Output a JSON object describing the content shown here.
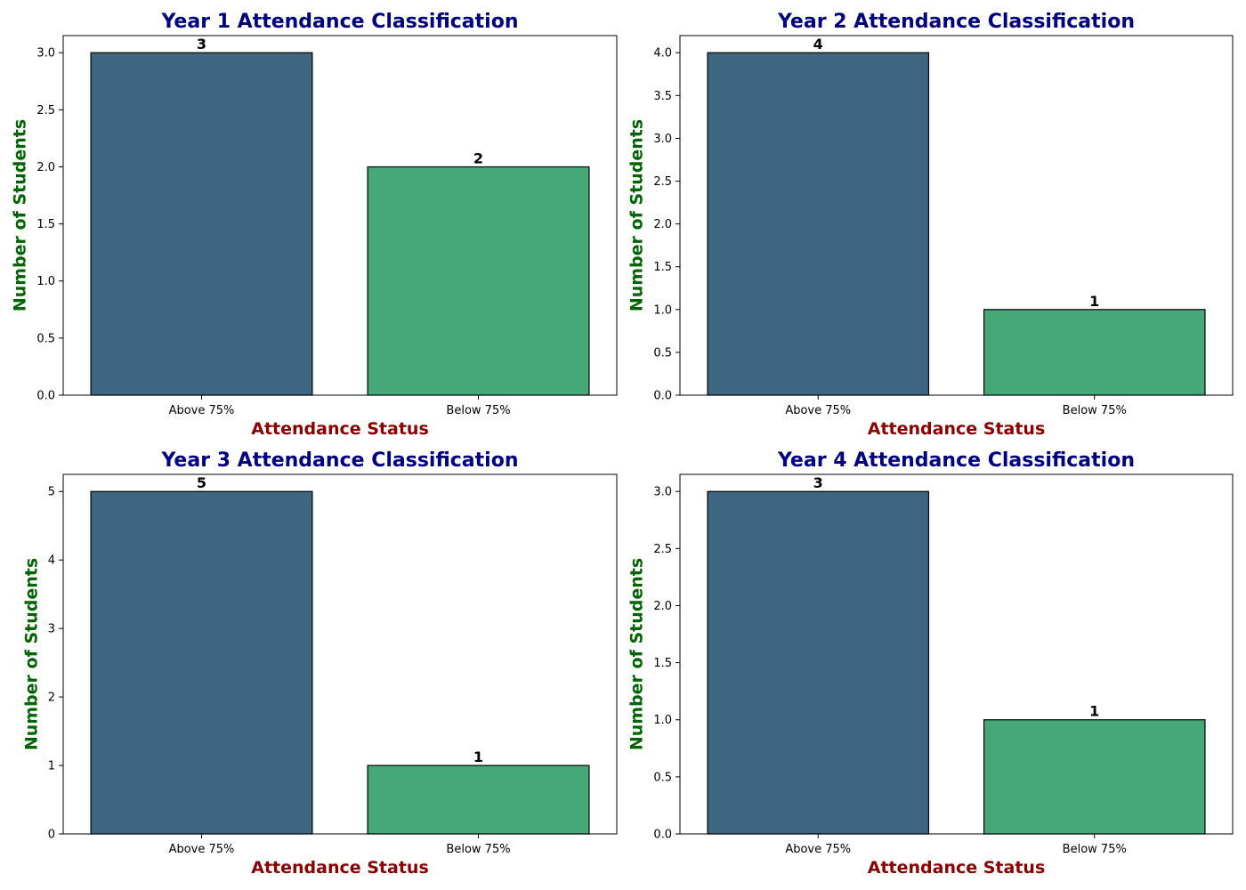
{
  "colors": {
    "bar_above": "#3e6681",
    "bar_below": "#46a876",
    "bar_edge": "#000000",
    "title": "#000080",
    "xlabel": "#8b0000",
    "ylabel": "#006400"
  },
  "chart_data": [
    {
      "type": "bar",
      "title": "Year 1 Attendance Classification",
      "xlabel": "Attendance Status",
      "ylabel": "Number of Students",
      "categories": [
        "Above 75%",
        "Below 75%"
      ],
      "values": [
        3,
        2
      ],
      "bar_labels": [
        "3",
        "2"
      ],
      "ylim": [
        0,
        3.15
      ],
      "yticks": [
        0,
        0.5,
        1,
        1.5,
        2,
        2.5,
        3
      ],
      "ytick_labels": [
        "0.0",
        "0.5",
        "1.0",
        "1.5",
        "2.0",
        "2.5",
        "3.0"
      ],
      "grid": false
    },
    {
      "type": "bar",
      "title": "Year 2 Attendance Classification",
      "xlabel": "Attendance Status",
      "ylabel": "Number of Students",
      "categories": [
        "Above 75%",
        "Below 75%"
      ],
      "values": [
        4,
        1
      ],
      "bar_labels": [
        "4",
        "1"
      ],
      "ylim": [
        0,
        4.2
      ],
      "yticks": [
        0,
        0.5,
        1,
        1.5,
        2,
        2.5,
        3,
        3.5,
        4
      ],
      "ytick_labels": [
        "0.0",
        "0.5",
        "1.0",
        "1.5",
        "2.0",
        "2.5",
        "3.0",
        "3.5",
        "4.0"
      ],
      "grid": false
    },
    {
      "type": "bar",
      "title": "Year 3 Attendance Classification",
      "xlabel": "Attendance Status",
      "ylabel": "Number of Students",
      "categories": [
        "Above 75%",
        "Below 75%"
      ],
      "values": [
        5,
        1
      ],
      "bar_labels": [
        "5",
        "1"
      ],
      "ylim": [
        0,
        5.25
      ],
      "yticks": [
        0,
        1,
        2,
        3,
        4,
        5
      ],
      "ytick_labels": [
        "0",
        "1",
        "2",
        "3",
        "4",
        "5"
      ],
      "grid": false
    },
    {
      "type": "bar",
      "title": "Year 4 Attendance Classification",
      "xlabel": "Attendance Status",
      "ylabel": "Number of Students",
      "categories": [
        "Above 75%",
        "Below 75%"
      ],
      "values": [
        3,
        1
      ],
      "bar_labels": [
        "3",
        "1"
      ],
      "ylim": [
        0,
        3.15
      ],
      "yticks": [
        0,
        0.5,
        1,
        1.5,
        2,
        2.5,
        3
      ],
      "ytick_labels": [
        "0.0",
        "0.5",
        "1.0",
        "1.5",
        "2.0",
        "2.5",
        "3.0"
      ],
      "grid": false
    }
  ]
}
